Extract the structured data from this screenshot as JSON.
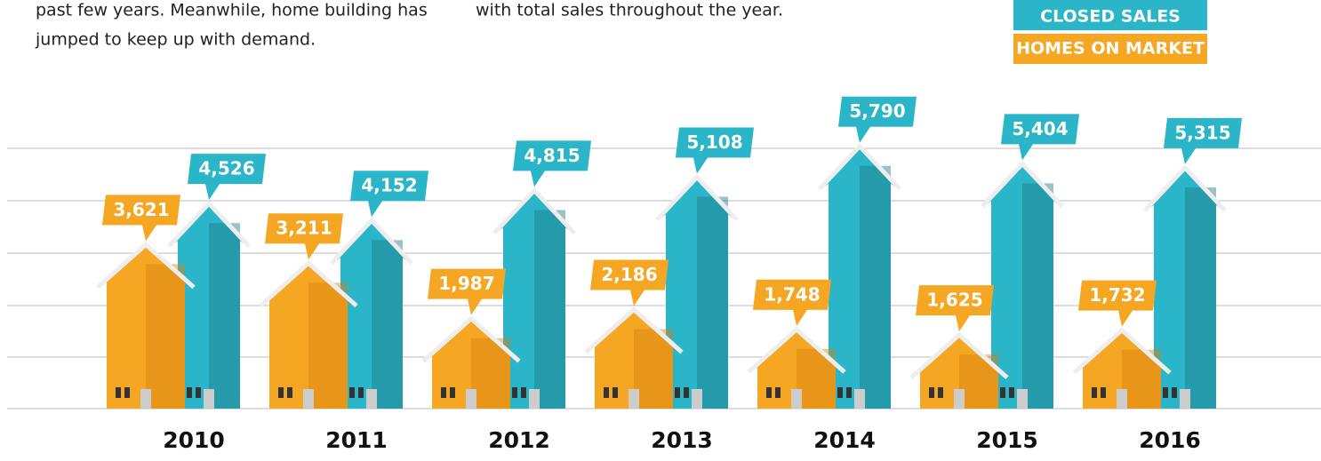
{
  "intro": {
    "left": [
      "past few years. Meanwhile, home building has",
      "jumped to keep up with demand."
    ],
    "middle": [
      "with total sales throughout the year."
    ]
  },
  "chart_data": {
    "type": "house-bar",
    "categories": [
      "2010",
      "2011",
      "2012",
      "2013",
      "2014",
      "2015",
      "2016"
    ],
    "series": [
      {
        "name": "CLOSED SALES",
        "color": "#2bb5c8",
        "values": [
          4526,
          4152,
          4815,
          5108,
          5790,
          5404,
          5315
        ],
        "value_labels": [
          "4,526",
          "4,152",
          "4,815",
          "5,108",
          "5,790",
          "5,404",
          "5,315"
        ]
      },
      {
        "name": "HOMES ON MARKET",
        "color": "#f5a623",
        "values": [
          3621,
          3211,
          1987,
          2186,
          1748,
          1625,
          1732
        ],
        "value_labels": [
          "3,621",
          "3,211",
          "1,987",
          "2,186",
          "1,748",
          "1,625",
          "1,732"
        ]
      }
    ],
    "ylim": [
      0,
      9000
    ],
    "legend": "top-right"
  }
}
